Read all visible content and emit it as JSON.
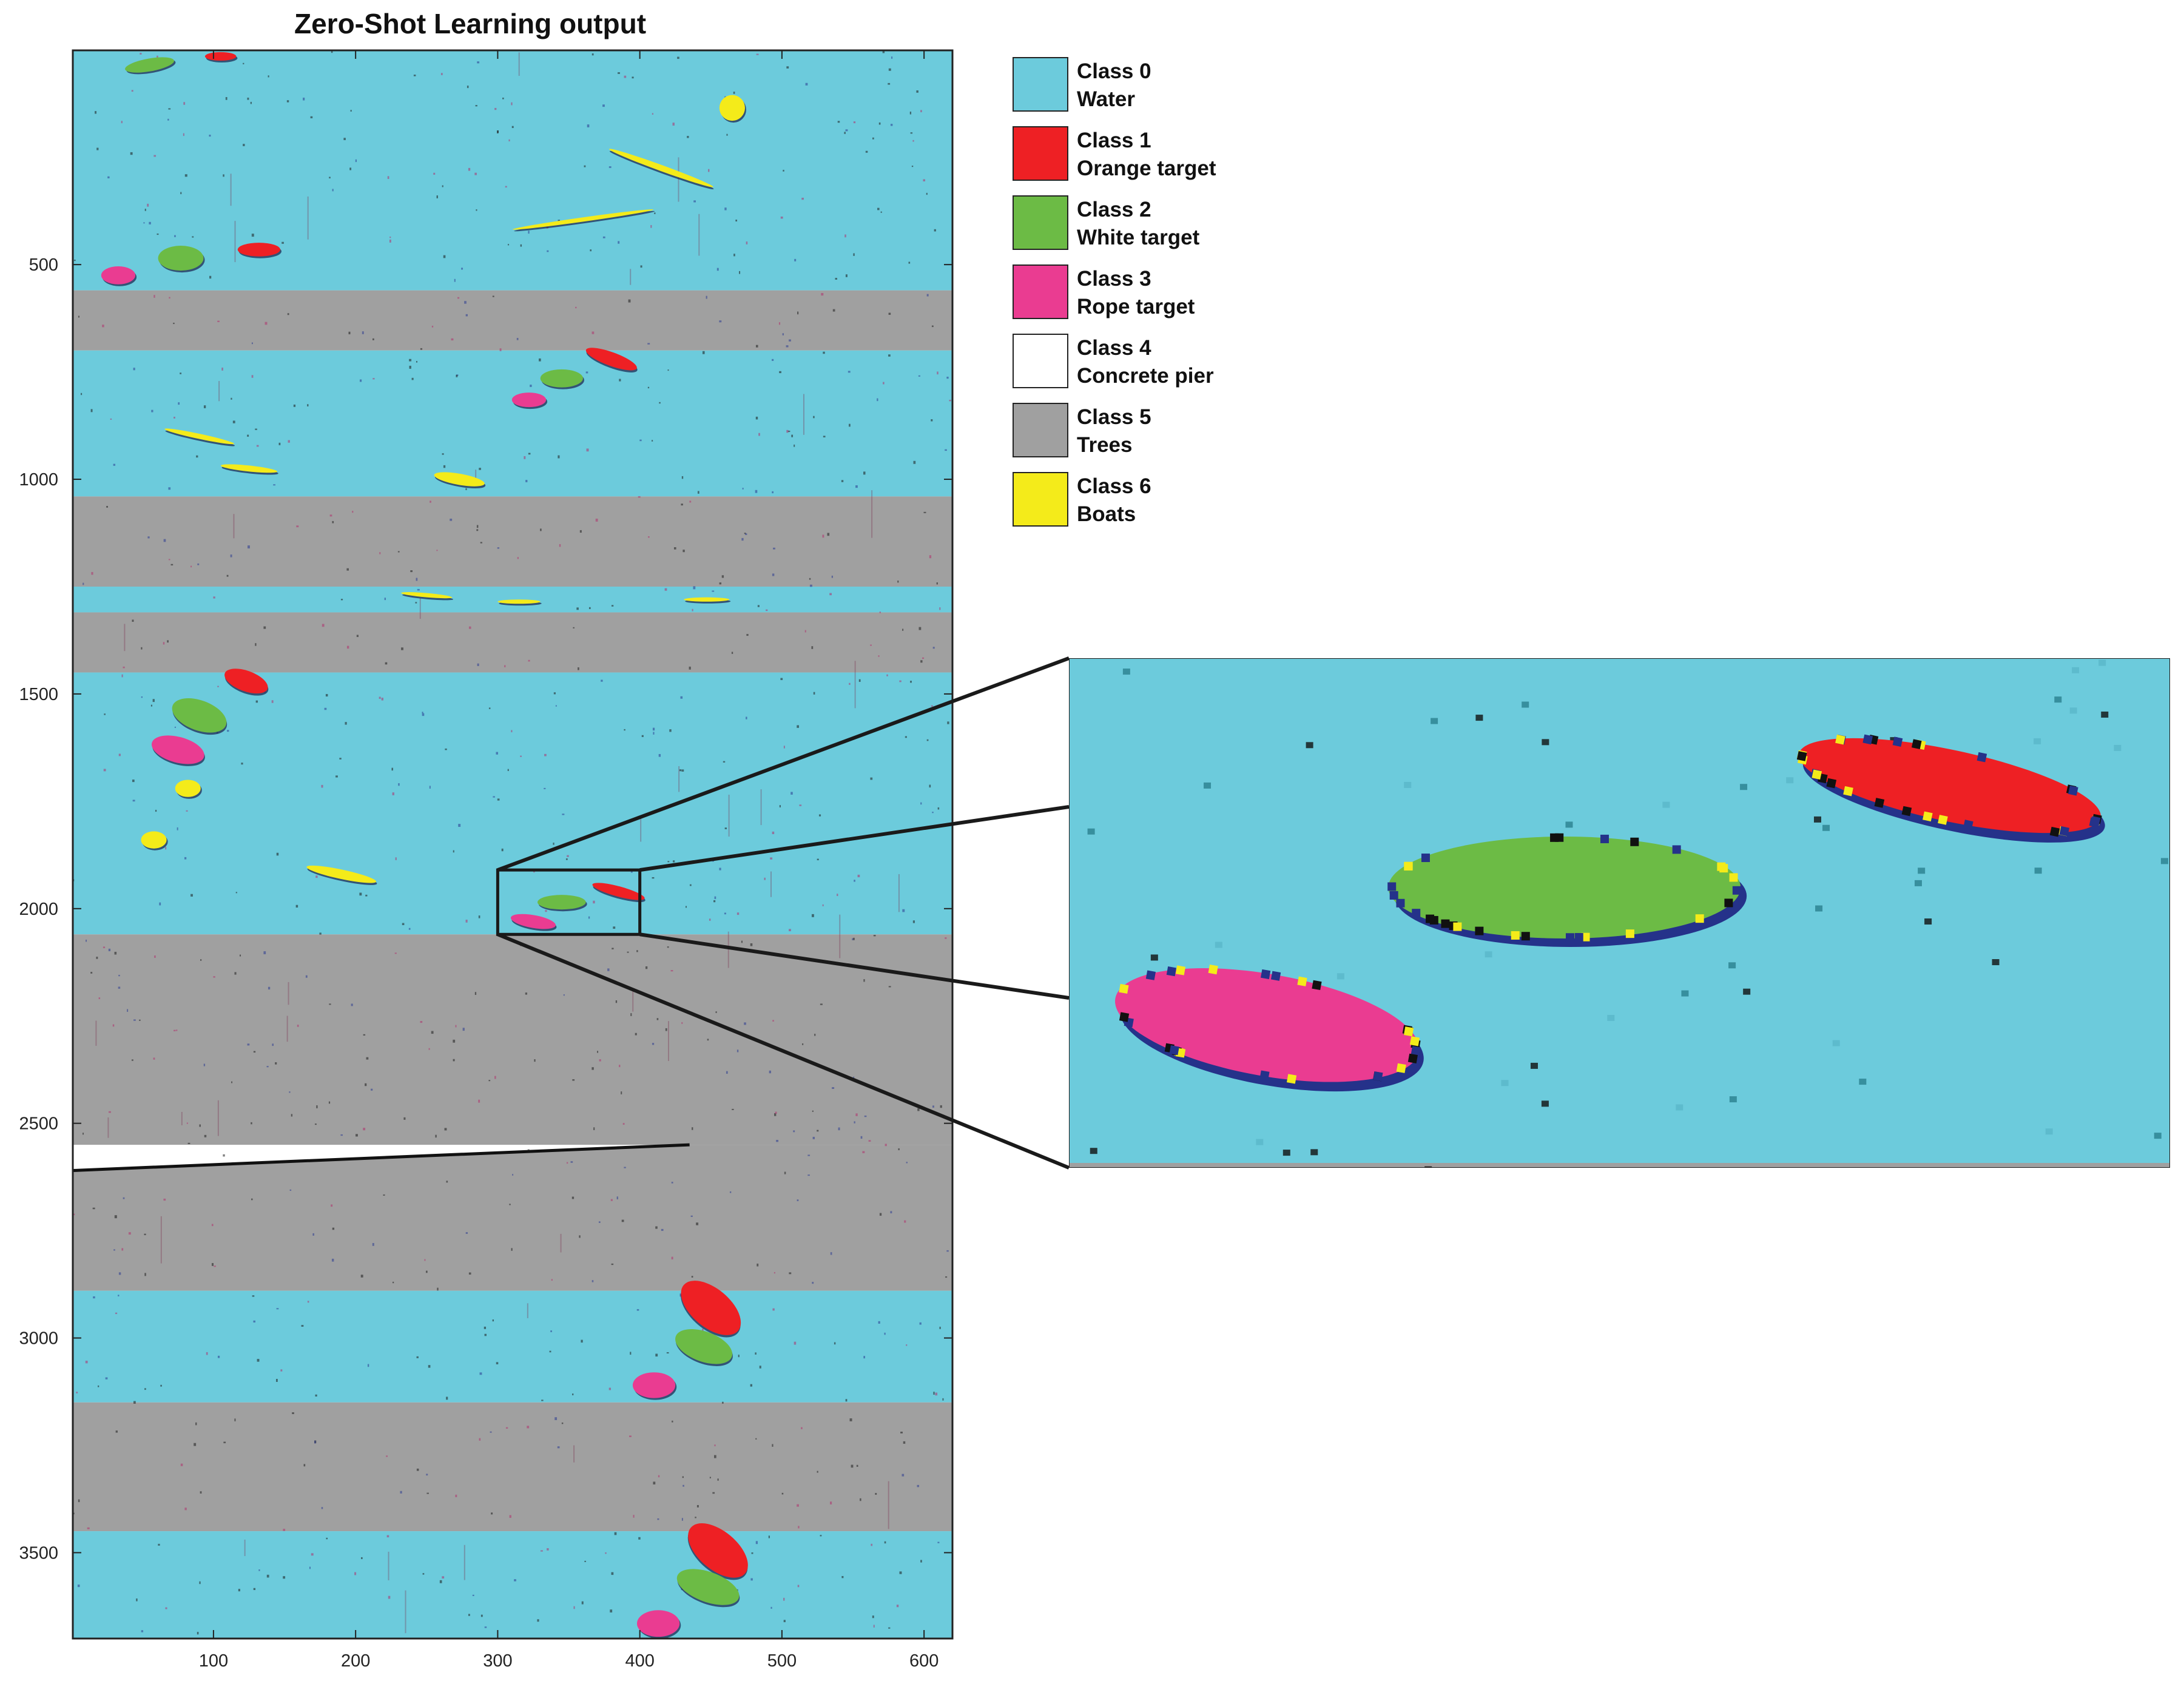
{
  "chart_data": {
    "type": "heatmap",
    "title": "Zero-Shot Learning output",
    "xlabel": "",
    "ylabel": "",
    "xlim": [
      1,
      620
    ],
    "ylim": [
      3700,
      1
    ],
    "x_ticks": [
      100,
      200,
      300,
      400,
      500,
      600
    ],
    "y_ticks": [
      500,
      1000,
      1500,
      2000,
      2500,
      3000,
      3500
    ],
    "legend_position": "right",
    "classes": [
      {
        "id": 0,
        "label": "Class 0",
        "name": "Water",
        "color": "#6ccbdc"
      },
      {
        "id": 1,
        "label": "Class 1",
        "name": "Orange target",
        "color": "#ee2024"
      },
      {
        "id": 2,
        "label": "Class 2",
        "name": "White target",
        "color": "#6cbb45"
      },
      {
        "id": 3,
        "label": "Class 3",
        "name": "Rope target",
        "color": "#ea3c91"
      },
      {
        "id": 4,
        "label": "Class 4",
        "name": "Concrete pier",
        "color": "#ffffff"
      },
      {
        "id": 5,
        "label": "Class 5",
        "name": "Trees",
        "color": "#a0a0a0"
      },
      {
        "id": 6,
        "label": "Class 6",
        "name": "Boats",
        "color": "#f4eb1a"
      }
    ],
    "bands": [
      {
        "class": 0,
        "y0": 1,
        "y1": 560
      },
      {
        "class": 5,
        "y0": 560,
        "y1": 700
      },
      {
        "class": 0,
        "y0": 700,
        "y1": 1040
      },
      {
        "class": 5,
        "y0": 1040,
        "y1": 1250
      },
      {
        "class": 0,
        "y0": 1250,
        "y1": 1310
      },
      {
        "class": 5,
        "y0": 1310,
        "y1": 1450
      },
      {
        "class": 0,
        "y0": 1450,
        "y1": 2060
      },
      {
        "class": 5,
        "y0": 2060,
        "y1": 2550
      },
      {
        "class": 5,
        "y0": 2550,
        "y1": 2890
      },
      {
        "class": 0,
        "y0": 2890,
        "y1": 3150
      },
      {
        "class": 5,
        "y0": 3150,
        "y1": 3450
      },
      {
        "class": 0,
        "y0": 3450,
        "y1": 3700
      }
    ],
    "pier": {
      "class": 4,
      "x0": 1,
      "x1": 435,
      "y0": 2550,
      "y1": 2610
    },
    "objects": [
      {
        "class": 2,
        "x": 55,
        "y": 35,
        "w": 35,
        "h": 30,
        "angle": -10
      },
      {
        "class": 1,
        "x": 105,
        "y": 15,
        "w": 22,
        "h": 20,
        "angle": 0
      },
      {
        "class": 6,
        "x": 465,
        "y": 135,
        "w": 18,
        "h": 60,
        "angle": 0
      },
      {
        "class": 6,
        "x": 415,
        "y": 275,
        "w": 78,
        "h": 14,
        "angle": 20
      },
      {
        "class": 6,
        "x": 360,
        "y": 395,
        "w": 100,
        "h": 10,
        "angle": -8
      },
      {
        "class": 2,
        "x": 77,
        "y": 485,
        "w": 32,
        "h": 58,
        "angle": 0
      },
      {
        "class": 1,
        "x": 132,
        "y": 465,
        "w": 30,
        "h": 32,
        "angle": 0
      },
      {
        "class": 3,
        "x": 33,
        "y": 525,
        "w": 24,
        "h": 42,
        "angle": 0
      },
      {
        "class": 1,
        "x": 380,
        "y": 720,
        "w": 38,
        "h": 32,
        "angle": 20
      },
      {
        "class": 2,
        "x": 345,
        "y": 765,
        "w": 30,
        "h": 42,
        "angle": 0
      },
      {
        "class": 3,
        "x": 322,
        "y": 815,
        "w": 24,
        "h": 34,
        "angle": 0
      },
      {
        "class": 6,
        "x": 90,
        "y": 900,
        "w": 50,
        "h": 12,
        "angle": 12
      },
      {
        "class": 6,
        "x": 125,
        "y": 975,
        "w": 40,
        "h": 14,
        "angle": 6
      },
      {
        "class": 6,
        "x": 273,
        "y": 1000,
        "w": 36,
        "h": 26,
        "angle": 10
      },
      {
        "class": 6,
        "x": 250,
        "y": 1270,
        "w": 36,
        "h": 10,
        "angle": 5
      },
      {
        "class": 6,
        "x": 315,
        "y": 1285,
        "w": 30,
        "h": 10,
        "angle": 0
      },
      {
        "class": 6,
        "x": 447,
        "y": 1280,
        "w": 32,
        "h": 10,
        "angle": 0
      },
      {
        "class": 1,
        "x": 123,
        "y": 1470,
        "w": 32,
        "h": 48,
        "angle": 20
      },
      {
        "class": 2,
        "x": 90,
        "y": 1550,
        "w": 40,
        "h": 70,
        "angle": 20
      },
      {
        "class": 3,
        "x": 75,
        "y": 1630,
        "w": 38,
        "h": 60,
        "angle": 15
      },
      {
        "class": 6,
        "x": 82,
        "y": 1720,
        "w": 18,
        "h": 40,
        "angle": 0
      },
      {
        "class": 6,
        "x": 58,
        "y": 1840,
        "w": 18,
        "h": 40,
        "angle": 0
      },
      {
        "class": 6,
        "x": 190,
        "y": 1920,
        "w": 50,
        "h": 22,
        "angle": 12
      },
      {
        "class": 1,
        "x": 385,
        "y": 1960,
        "w": 38,
        "h": 24,
        "angle": 15
      },
      {
        "class": 2,
        "x": 345,
        "y": 1985,
        "w": 34,
        "h": 34,
        "angle": 0
      },
      {
        "class": 3,
        "x": 325,
        "y": 2030,
        "w": 32,
        "h": 30,
        "angle": 10
      },
      {
        "class": 1,
        "x": 450,
        "y": 2930,
        "w": 50,
        "h": 90,
        "angle": 40
      },
      {
        "class": 2,
        "x": 445,
        "y": 3020,
        "w": 42,
        "h": 70,
        "angle": 20
      },
      {
        "class": 3,
        "x": 410,
        "y": 3110,
        "w": 30,
        "h": 60,
        "angle": 0
      },
      {
        "class": 1,
        "x": 455,
        "y": 3495,
        "w": 50,
        "h": 90,
        "angle": 40
      },
      {
        "class": 2,
        "x": 448,
        "y": 3580,
        "w": 46,
        "h": 70,
        "angle": 20
      },
      {
        "class": 3,
        "x": 413,
        "y": 3665,
        "w": 30,
        "h": 62,
        "angle": 0
      }
    ],
    "zoom_region": {
      "x0": 300,
      "x1": 400,
      "y0": 1910,
      "y1": 2060
    },
    "zoom_objects": [
      {
        "class": 1,
        "x": 80,
        "y": 25,
        "w": 28,
        "h": 14,
        "angle": 12
      },
      {
        "class": 2,
        "x": 45,
        "y": 45,
        "w": 32,
        "h": 20,
        "angle": 0
      },
      {
        "class": 3,
        "x": 18,
        "y": 72,
        "w": 28,
        "h": 20,
        "angle": 10
      }
    ]
  }
}
